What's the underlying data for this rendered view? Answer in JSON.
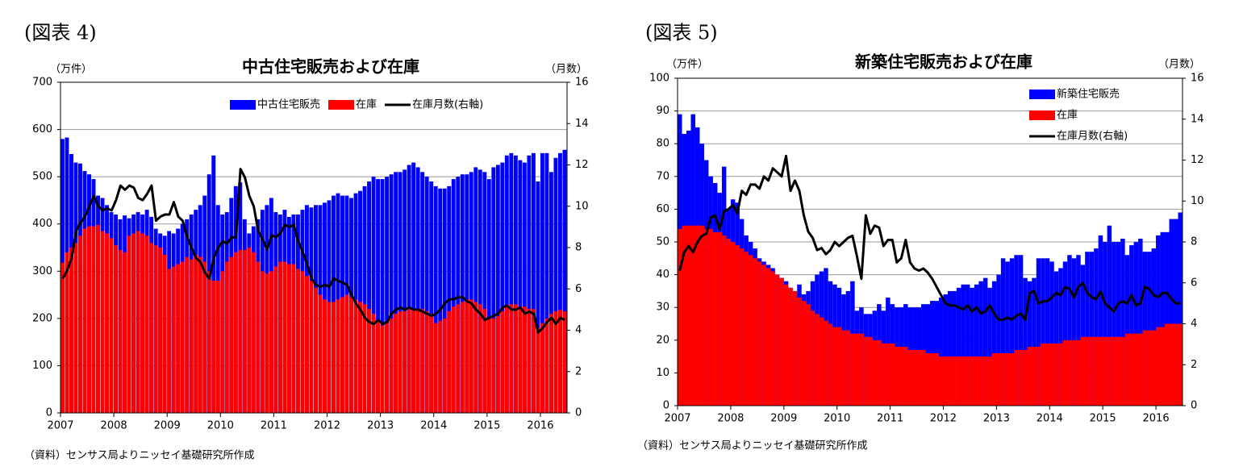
{
  "chart_data": [
    {
      "type": "bar",
      "figure_label": "(図表 4)",
      "title": "中古住宅販売および在庫",
      "unit_left": "（万件）",
      "unit_right": "（月数）",
      "source": "（資料）センサス局よりニッセイ基礎研究所作成",
      "legend": "upper center",
      "grid": true,
      "categories": [
        "2007",
        null,
        null,
        null,
        null,
        null,
        null,
        null,
        null,
        null,
        null,
        null,
        "2008",
        null,
        null,
        null,
        null,
        null,
        null,
        null,
        null,
        null,
        null,
        null,
        "2009",
        null,
        null,
        null,
        null,
        null,
        null,
        null,
        null,
        null,
        null,
        null,
        "2010",
        null,
        null,
        null,
        null,
        null,
        null,
        null,
        null,
        null,
        null,
        null,
        "2011",
        null,
        null,
        null,
        null,
        null,
        null,
        null,
        null,
        null,
        null,
        null,
        "2012",
        null,
        null,
        null,
        null,
        null,
        null,
        null,
        null,
        null,
        null,
        null,
        "2013",
        null,
        null,
        null,
        null,
        null,
        null,
        null,
        null,
        null,
        null,
        null,
        "2014",
        null,
        null,
        null,
        null,
        null,
        null,
        null,
        null,
        null,
        null,
        null,
        "2015",
        null,
        null,
        null,
        null,
        null,
        null,
        null,
        null,
        null,
        null,
        null,
        "2016",
        null,
        null,
        null,
        null,
        null
      ],
      "ylim": [
        0,
        700
      ],
      "yticks": [
        0,
        100,
        200,
        300,
        400,
        500,
        600,
        700
      ],
      "y2lim": [
        0,
        16
      ],
      "y2ticks": [
        0,
        2,
        4,
        6,
        8,
        10,
        12,
        14,
        16
      ],
      "series": [
        {
          "name": "中古住宅販売",
          "color": "#0000ff",
          "values": [
            580,
            583,
            548,
            530,
            528,
            512,
            505,
            495,
            460,
            455,
            440,
            425,
            420,
            410,
            418,
            412,
            420,
            425,
            420,
            430,
            415,
            390,
            380,
            375,
            385,
            380,
            390,
            400,
            410,
            420,
            430,
            440,
            460,
            505,
            545,
            440,
            420,
            425,
            455,
            480,
            488,
            410,
            380,
            395,
            410,
            430,
            440,
            455,
            425,
            420,
            430,
            415,
            420,
            420,
            430,
            440,
            435,
            440,
            440,
            445,
            450,
            460,
            465,
            460,
            460,
            455,
            465,
            470,
            480,
            490,
            500,
            495,
            495,
            500,
            505,
            510,
            510,
            515,
            525,
            530,
            520,
            510,
            500,
            490,
            480,
            475,
            475,
            480,
            495,
            500,
            505,
            505,
            510,
            520,
            515,
            510,
            495,
            520,
            525,
            530,
            545,
            550,
            545,
            535,
            530,
            545,
            550,
            490,
            550,
            550,
            510,
            540,
            550,
            557
          ]
        },
        {
          "name": "在庫",
          "color": "#ff0000",
          "values": [
            318,
            340,
            350,
            360,
            375,
            390,
            395,
            395,
            398,
            385,
            380,
            370,
            355,
            345,
            340,
            375,
            380,
            385,
            380,
            375,
            360,
            355,
            350,
            335,
            305,
            310,
            315,
            320,
            330,
            325,
            335,
            330,
            320,
            300,
            280,
            280,
            300,
            320,
            330,
            340,
            345,
            345,
            350,
            340,
            320,
            300,
            295,
            300,
            310,
            320,
            320,
            315,
            315,
            305,
            300,
            290,
            280,
            265,
            250,
            240,
            235,
            235,
            240,
            245,
            250,
            245,
            240,
            235,
            230,
            220,
            210,
            195,
            185,
            190,
            200,
            210,
            215,
            215,
            220,
            220,
            220,
            220,
            215,
            210,
            190,
            195,
            200,
            215,
            225,
            230,
            235,
            240,
            240,
            235,
            230,
            220,
            200,
            200,
            205,
            215,
            225,
            230,
            230,
            225,
            225,
            220,
            220,
            180,
            190,
            200,
            210,
            215,
            218,
            215
          ]
        },
        {
          "name": "在庫月数(右軸)",
          "color": "#000000",
          "type": "line",
          "axis": "y2",
          "values": [
            6.5,
            6.9,
            7.5,
            8.8,
            9.2,
            9.5,
            10.0,
            10.5,
            10.0,
            9.8,
            9.9,
            9.8,
            10.3,
            11.0,
            10.8,
            11.0,
            10.9,
            10.4,
            10.3,
            10.6,
            11.0,
            9.3,
            9.5,
            9.6,
            9.6,
            10.2,
            9.5,
            9.3,
            8.5,
            8.0,
            7.5,
            7.3,
            6.8,
            6.5,
            7.5,
            8.0,
            8.3,
            8.2,
            8.5,
            8.5,
            11.8,
            11.4,
            10.5,
            10.0,
            8.8,
            8.4,
            7.9,
            8.6,
            8.5,
            8.7,
            9.1,
            9.0,
            9.1,
            8.3,
            7.8,
            7.2,
            6.5,
            6.2,
            6.1,
            6.2,
            6.1,
            6.5,
            6.4,
            6.3,
            6.2,
            5.7,
            5.3,
            5.0,
            4.6,
            4.4,
            4.3,
            4.5,
            4.3,
            4.4,
            4.8,
            5.0,
            5.1,
            5.0,
            5.1,
            5.0,
            5.0,
            4.9,
            4.8,
            4.7,
            4.8,
            5.0,
            5.3,
            5.5,
            5.5,
            5.6,
            5.6,
            5.4,
            5.3,
            5.0,
            4.8,
            4.5,
            4.6,
            4.7,
            4.8,
            5.1,
            5.2,
            5.0,
            5.0,
            5.1,
            4.8,
            4.9,
            4.8,
            3.9,
            4.1,
            4.4,
            4.6,
            4.3,
            4.6,
            4.5
          ]
        }
      ]
    },
    {
      "type": "bar",
      "figure_label": "(図表 5)",
      "title": "新築住宅販売および在庫",
      "unit_left": "（万件）",
      "unit_right": "（月数）",
      "source": "（資料）センサス局よりニッセイ基礎研究所作成",
      "legend": "upper right",
      "grid": true,
      "categories": [
        "2007",
        null,
        null,
        null,
        null,
        null,
        null,
        null,
        null,
        null,
        null,
        null,
        "2008",
        null,
        null,
        null,
        null,
        null,
        null,
        null,
        null,
        null,
        null,
        null,
        "2009",
        null,
        null,
        null,
        null,
        null,
        null,
        null,
        null,
        null,
        null,
        null,
        "2010",
        null,
        null,
        null,
        null,
        null,
        null,
        null,
        null,
        null,
        null,
        null,
        "2011",
        null,
        null,
        null,
        null,
        null,
        null,
        null,
        null,
        null,
        null,
        null,
        "2012",
        null,
        null,
        null,
        null,
        null,
        null,
        null,
        null,
        null,
        null,
        null,
        "2013",
        null,
        null,
        null,
        null,
        null,
        null,
        null,
        null,
        null,
        null,
        null,
        "2014",
        null,
        null,
        null,
        null,
        null,
        null,
        null,
        null,
        null,
        null,
        null,
        "2015",
        null,
        null,
        null,
        null,
        null,
        null,
        null,
        null,
        null,
        null,
        null,
        "2016",
        null,
        null,
        null,
        null,
        null
      ],
      "ylim": [
        0,
        100
      ],
      "yticks": [
        0,
        10,
        20,
        30,
        40,
        50,
        60,
        70,
        80,
        90,
        100
      ],
      "y2lim": [
        0,
        16
      ],
      "y2ticks": [
        0,
        2,
        4,
        6,
        8,
        10,
        12,
        14,
        16
      ],
      "series": [
        {
          "name": "新築住宅販売",
          "color": "#0000ff",
          "values": [
            89,
            83,
            84,
            89,
            85,
            80,
            75,
            70,
            68,
            65,
            73,
            60,
            63,
            62,
            57,
            52,
            50,
            48,
            45,
            44,
            43,
            42,
            40,
            39,
            38,
            36,
            34,
            37,
            34,
            35,
            38,
            40,
            41,
            42,
            38,
            37,
            36,
            34,
            35,
            38,
            29,
            30,
            28,
            28,
            29,
            31,
            29,
            33,
            31,
            30,
            30,
            31,
            30,
            30,
            30,
            31,
            31,
            32,
            32,
            33,
            34,
            35,
            35,
            36,
            37,
            37,
            36,
            37,
            38,
            39,
            36,
            38,
            40,
            45,
            44,
            45,
            46,
            46,
            39,
            38,
            39,
            45,
            45,
            45,
            44,
            41,
            42,
            44,
            46,
            45,
            46,
            43,
            47,
            47,
            48,
            52,
            50,
            55,
            50,
            50,
            51,
            46,
            49,
            50,
            51,
            47,
            47,
            48,
            52,
            53,
            53,
            57,
            57,
            59
          ]
        },
        {
          "name": "在庫",
          "color": "#ff0000",
          "values": [
            54,
            55,
            55,
            55,
            55,
            55,
            54,
            54,
            53,
            53,
            52,
            51,
            50,
            49,
            48,
            47,
            46,
            45,
            44,
            43,
            42,
            41,
            40,
            39,
            37,
            36,
            35,
            33,
            32,
            31,
            29,
            28,
            27,
            26,
            25,
            24,
            24,
            23,
            23,
            22,
            22,
            22,
            21,
            21,
            20,
            20,
            19,
            19,
            19,
            18,
            18,
            18,
            17,
            17,
            17,
            17,
            16,
            16,
            16,
            15,
            15,
            15,
            15,
            15,
            15,
            15,
            15,
            15,
            15,
            15,
            15,
            16,
            16,
            16,
            16,
            16,
            17,
            17,
            17,
            18,
            18,
            18,
            19,
            19,
            19,
            19,
            19,
            20,
            20,
            20,
            20,
            21,
            21,
            21,
            21,
            21,
            21,
            21,
            21,
            21,
            21,
            22,
            22,
            22,
            22,
            23,
            23,
            23,
            24,
            24,
            25,
            25,
            25,
            25
          ]
        },
        {
          "name": "在庫月数(右軸)",
          "color": "#000000",
          "type": "line",
          "axis": "y2",
          "values": [
            6.6,
            7.5,
            7.8,
            7.5,
            8.0,
            8.3,
            8.4,
            9.2,
            9.3,
            8.6,
            9.5,
            9.6,
            9.8,
            9.4,
            10.5,
            10.3,
            10.8,
            10.8,
            10.6,
            11.2,
            11.0,
            11.6,
            11.4,
            11.2,
            12.2,
            10.5,
            11.0,
            10.5,
            9.3,
            8.5,
            8.2,
            7.6,
            7.7,
            7.4,
            7.6,
            8.0,
            7.8,
            8.0,
            8.2,
            8.3,
            7.3,
            6.2,
            9.3,
            8.4,
            8.8,
            8.7,
            7.8,
            8.1,
            8.1,
            7.0,
            7.2,
            8.1,
            7.0,
            6.7,
            6.6,
            6.7,
            6.5,
            6.2,
            5.8,
            5.4,
            5.0,
            4.9,
            4.9,
            4.8,
            4.7,
            4.9,
            4.6,
            4.8,
            4.5,
            4.6,
            4.9,
            4.5,
            4.2,
            4.2,
            4.3,
            4.2,
            4.4,
            4.5,
            4.2,
            5.5,
            5.6,
            5.0,
            5.1,
            5.1,
            5.3,
            5.5,
            5.4,
            5.8,
            5.7,
            5.3,
            5.8,
            6.0,
            5.5,
            5.3,
            5.2,
            5.6,
            5.0,
            4.8,
            4.6,
            5.0,
            5.1,
            5.0,
            5.4,
            4.9,
            5.0,
            5.8,
            5.7,
            5.4,
            5.3,
            5.5,
            5.5,
            5.2,
            5.0,
            5.0
          ]
        }
      ]
    }
  ]
}
